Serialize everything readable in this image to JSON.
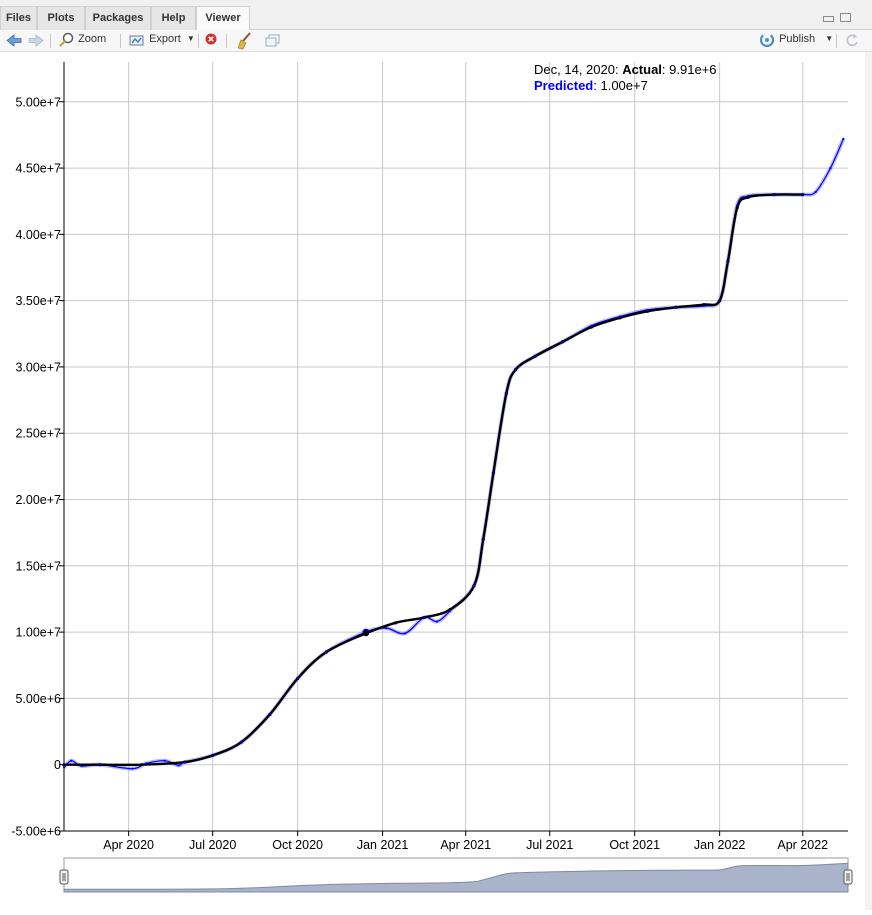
{
  "tabs": [
    "Files",
    "Plots",
    "Packages",
    "Help",
    "Viewer"
  ],
  "toolbar": {
    "zoom_label": "Zoom",
    "export_label": "Export",
    "publish_label": "Publish"
  },
  "tooltip": {
    "date": "Dec, 14, 2020:",
    "actual_label": "Actual",
    "actual_value": ": 9.91e+6",
    "predicted_label": "Predicted",
    "predicted_value": ": 1.00e+7"
  },
  "colors": {
    "actual": "#000000",
    "predicted": "#0000ff",
    "predicted_band": "#6a6af0",
    "grid": "#c8c8c8",
    "range_fill": "#a9b3c9"
  },
  "chart_data": {
    "type": "line",
    "title": "",
    "xlabel": "",
    "ylabel": "",
    "x_tick_labels": [
      "Apr 2020",
      "Jul 2020",
      "Oct 2020",
      "Jan 2021",
      "Apr 2021",
      "Jul 2021",
      "Oct 2021",
      "Jan 2022",
      "Apr 2022"
    ],
    "y_tick_labels": [
      "-5.00e+6",
      "0",
      "5.00e+6",
      "1.00e+7",
      "1.50e+7",
      "2.00e+7",
      "2.50e+7",
      "3.00e+7",
      "3.50e+7",
      "4.00e+7",
      "4.50e+7",
      "5.00e+7"
    ],
    "ylim": [
      -5000000,
      50000000
    ],
    "grid": true,
    "legend": "none",
    "range_selector": true,
    "series": [
      {
        "name": "Actual",
        "x": [
          "2020-01-22",
          "2020-03-01",
          "2020-04-15",
          "2020-06-01",
          "2020-07-01",
          "2020-08-01",
          "2020-09-01",
          "2020-10-01",
          "2020-11-01",
          "2020-12-14",
          "2021-01-15",
          "2021-02-15",
          "2021-03-15",
          "2021-04-10",
          "2021-04-20",
          "2021-05-01",
          "2021-05-15",
          "2021-05-25",
          "2021-06-15",
          "2021-07-15",
          "2021-08-15",
          "2021-09-15",
          "2021-10-15",
          "2021-11-15",
          "2021-12-15",
          "2022-01-01",
          "2022-01-10",
          "2022-01-20",
          "2022-02-01",
          "2022-03-01",
          "2022-04-01"
        ],
        "values": [
          0,
          0,
          0,
          200000,
          700000,
          1700000,
          3800000,
          6500000,
          8500000,
          9910000,
          10700000,
          11100000,
          11700000,
          13500000,
          17000000,
          22000000,
          28000000,
          29800000,
          30800000,
          31900000,
          33000000,
          33700000,
          34200000,
          34500000,
          34700000,
          35000000,
          38000000,
          42000000,
          42800000,
          43000000,
          43000000
        ]
      },
      {
        "name": "Predicted",
        "x": [
          "2020-01-22",
          "2020-01-30",
          "2020-02-10",
          "2020-03-01",
          "2020-04-05",
          "2020-04-20",
          "2020-05-10",
          "2020-05-25",
          "2020-06-01",
          "2020-07-01",
          "2020-08-01",
          "2020-09-01",
          "2020-10-01",
          "2020-11-01",
          "2020-12-14",
          "2021-01-05",
          "2021-01-25",
          "2021-02-15",
          "2021-03-01",
          "2021-03-15",
          "2021-04-10",
          "2021-04-20",
          "2021-05-01",
          "2021-05-15",
          "2021-05-25",
          "2021-06-15",
          "2021-07-15",
          "2021-08-15",
          "2021-09-15",
          "2021-10-15",
          "2021-11-15",
          "2021-12-15",
          "2022-01-01",
          "2022-01-10",
          "2022-01-20",
          "2022-02-01",
          "2022-03-01",
          "2022-04-01",
          "2022-04-15",
          "2022-05-01",
          "2022-05-15"
        ],
        "values": [
          -200000,
          300000,
          -100000,
          0,
          -300000,
          100000,
          300000,
          -50000,
          200000,
          700000,
          1700000,
          3800000,
          6500000,
          8500000,
          10000000,
          10300000,
          9900000,
          11100000,
          10800000,
          11600000,
          13500000,
          17000000,
          22000000,
          28000000,
          29800000,
          30800000,
          31900000,
          33100000,
          33800000,
          34300000,
          34500000,
          34600000,
          35000000,
          38000000,
          42200000,
          42900000,
          43000000,
          43000000,
          43200000,
          45000000,
          47200000
        ]
      }
    ]
  }
}
